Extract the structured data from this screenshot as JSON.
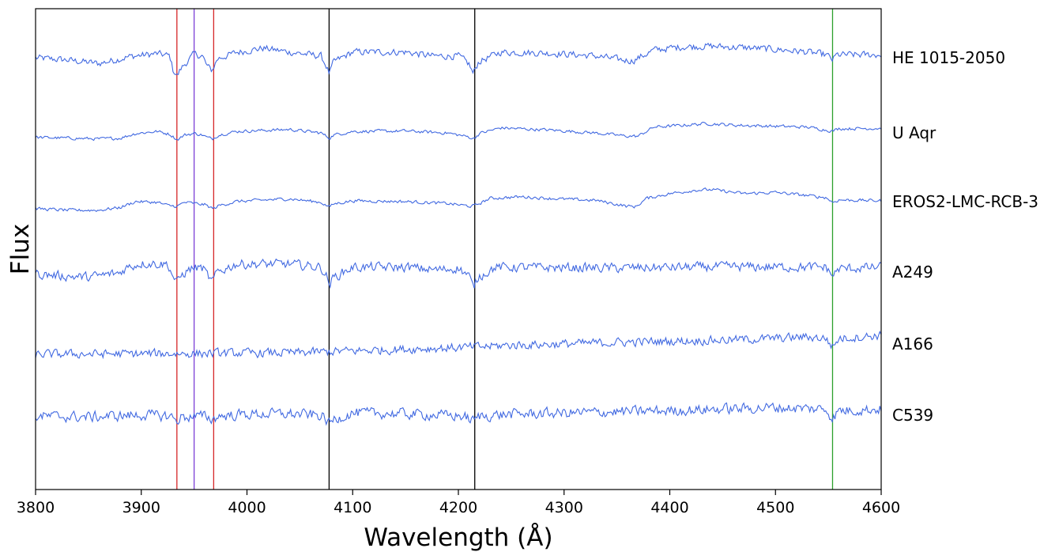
{
  "chart_data": {
    "type": "line",
    "title": "",
    "xlabel": "Wavelength (Å)",
    "ylabel": "Flux",
    "xlim": [
      3800,
      4600
    ],
    "xticks": [
      3800,
      3900,
      4000,
      4100,
      4200,
      4300,
      4400,
      4500,
      4600
    ],
    "yticks": [],
    "grid": false,
    "line_color": "#4169e1",
    "reference_lines": [
      {
        "x": 3933.7,
        "color": "#d62728"
      },
      {
        "x": 3950.0,
        "color": "#7b3fd6"
      },
      {
        "x": 3968.5,
        "color": "#d62728"
      },
      {
        "x": 4077.7,
        "color": "#000000"
      },
      {
        "x": 4215.5,
        "color": "#000000"
      },
      {
        "x": 4554.0,
        "color": "#2ca02c"
      }
    ],
    "series": [
      {
        "name": "HE 1015-2050",
        "noise": 0.55,
        "pts": [
          [
            3800,
            50
          ],
          [
            3830,
            45
          ],
          [
            3860,
            36
          ],
          [
            3890,
            54
          ],
          [
            3915,
            61
          ],
          [
            3927,
            55
          ],
          [
            3930,
            20
          ],
          [
            3934,
            5
          ],
          [
            3938,
            25
          ],
          [
            3950,
            60
          ],
          [
            3958,
            55
          ],
          [
            3962,
            30
          ],
          [
            3967,
            18
          ],
          [
            3972,
            48
          ],
          [
            3990,
            64
          ],
          [
            4015,
            75
          ],
          [
            4040,
            65
          ],
          [
            4070,
            55
          ],
          [
            4075,
            30
          ],
          [
            4078,
            10
          ],
          [
            4082,
            40
          ],
          [
            4100,
            65
          ],
          [
            4150,
            65
          ],
          [
            4175,
            55
          ],
          [
            4200,
            55
          ],
          [
            4210,
            35
          ],
          [
            4214,
            10
          ],
          [
            4219,
            40
          ],
          [
            4240,
            65
          ],
          [
            4290,
            62
          ],
          [
            4330,
            55
          ],
          [
            4355,
            45
          ],
          [
            4365,
            43
          ],
          [
            4385,
            70
          ],
          [
            4410,
            78
          ],
          [
            4435,
            80
          ],
          [
            4455,
            78
          ],
          [
            4480,
            75
          ],
          [
            4510,
            70
          ],
          [
            4530,
            65
          ],
          [
            4548,
            58
          ],
          [
            4554,
            45
          ],
          [
            4558,
            58
          ],
          [
            4600,
            58
          ]
        ]
      },
      {
        "name": "U Aqr",
        "noise": 0.25,
        "pts": [
          [
            3800,
            32
          ],
          [
            3860,
            28
          ],
          [
            3880,
            30
          ],
          [
            3895,
            42
          ],
          [
            3915,
            47
          ],
          [
            3927,
            40
          ],
          [
            3934,
            26
          ],
          [
            3941,
            38
          ],
          [
            3950,
            42
          ],
          [
            3958,
            38
          ],
          [
            3962,
            32
          ],
          [
            3967,
            28
          ],
          [
            3973,
            38
          ],
          [
            3990,
            47
          ],
          [
            4040,
            52
          ],
          [
            4070,
            43
          ],
          [
            4075,
            35
          ],
          [
            4078,
            30
          ],
          [
            4082,
            38
          ],
          [
            4100,
            47
          ],
          [
            4150,
            48
          ],
          [
            4190,
            43
          ],
          [
            4210,
            33
          ],
          [
            4214,
            28
          ],
          [
            4220,
            42
          ],
          [
            4240,
            56
          ],
          [
            4290,
            50
          ],
          [
            4330,
            43
          ],
          [
            4360,
            35
          ],
          [
            4370,
            35
          ],
          [
            4385,
            58
          ],
          [
            4410,
            62
          ],
          [
            4435,
            67
          ],
          [
            4460,
            63
          ],
          [
            4500,
            60
          ],
          [
            4530,
            58
          ],
          [
            4554,
            48
          ],
          [
            4560,
            54
          ],
          [
            4600,
            55
          ]
        ]
      },
      {
        "name": "EROS2-LMC-RCB-3",
        "noise": 0.25,
        "pts": [
          [
            3800,
            22
          ],
          [
            3830,
            18
          ],
          [
            3860,
            18
          ],
          [
            3880,
            25
          ],
          [
            3895,
            40
          ],
          [
            3915,
            38
          ],
          [
            3925,
            30
          ],
          [
            3934,
            28
          ],
          [
            3941,
            38
          ],
          [
            3960,
            32
          ],
          [
            3968,
            22
          ],
          [
            3974,
            30
          ],
          [
            3990,
            40
          ],
          [
            4040,
            47
          ],
          [
            4070,
            38
          ],
          [
            4078,
            26
          ],
          [
            4082,
            34
          ],
          [
            4100,
            42
          ],
          [
            4150,
            40
          ],
          [
            4190,
            35
          ],
          [
            4212,
            28
          ],
          [
            4216,
            30
          ],
          [
            4230,
            48
          ],
          [
            4260,
            52
          ],
          [
            4300,
            46
          ],
          [
            4330,
            43
          ],
          [
            4360,
            28
          ],
          [
            4368,
            27
          ],
          [
            4378,
            48
          ],
          [
            4400,
            60
          ],
          [
            4425,
            69
          ],
          [
            4440,
            70
          ],
          [
            4470,
            60
          ],
          [
            4500,
            63
          ],
          [
            4520,
            58
          ],
          [
            4548,
            50
          ],
          [
            4554,
            38
          ],
          [
            4560,
            44
          ],
          [
            4600,
            42
          ]
        ]
      },
      {
        "name": "A249",
        "noise": 0.75,
        "pts": [
          [
            3800,
            45
          ],
          [
            3825,
            40
          ],
          [
            3850,
            37
          ],
          [
            3880,
            48
          ],
          [
            3885,
            60
          ],
          [
            3900,
            72
          ],
          [
            3925,
            70
          ],
          [
            3930,
            40
          ],
          [
            3934,
            22
          ],
          [
            3938,
            42
          ],
          [
            3948,
            60
          ],
          [
            3958,
            60
          ],
          [
            3962,
            44
          ],
          [
            3967,
            24
          ],
          [
            3972,
            50
          ],
          [
            3990,
            70
          ],
          [
            4040,
            70
          ],
          [
            4070,
            62
          ],
          [
            4075,
            40
          ],
          [
            4078,
            18
          ],
          [
            4082,
            36
          ],
          [
            4100,
            62
          ],
          [
            4150,
            62
          ],
          [
            4180,
            55
          ],
          [
            4200,
            60
          ],
          [
            4210,
            40
          ],
          [
            4214,
            10
          ],
          [
            4219,
            38
          ],
          [
            4235,
            62
          ],
          [
            4350,
            60
          ],
          [
            4450,
            63
          ],
          [
            4548,
            62
          ],
          [
            4554,
            40
          ],
          [
            4560,
            58
          ],
          [
            4600,
            62
          ]
        ]
      },
      {
        "name": "A166",
        "noise": 0.7,
        "pts": [
          [
            3800,
            20
          ],
          [
            3950,
            22
          ],
          [
            4050,
            24
          ],
          [
            4150,
            33
          ],
          [
            4214,
            38
          ],
          [
            4250,
            43
          ],
          [
            4300,
            46
          ],
          [
            4350,
            50
          ],
          [
            4400,
            53
          ],
          [
            4450,
            56
          ],
          [
            4500,
            60
          ],
          [
            4530,
            64
          ],
          [
            4548,
            60
          ],
          [
            4554,
            38
          ],
          [
            4560,
            60
          ],
          [
            4600,
            68
          ]
        ]
      },
      {
        "name": "C539",
        "noise": 0.85,
        "pts": [
          [
            3800,
            52
          ],
          [
            3850,
            50
          ],
          [
            3900,
            55
          ],
          [
            3928,
            52
          ],
          [
            3933,
            40
          ],
          [
            3938,
            50
          ],
          [
            3962,
            52
          ],
          [
            3967,
            42
          ],
          [
            3972,
            52
          ],
          [
            4000,
            57
          ],
          [
            4040,
            58
          ],
          [
            4070,
            54
          ],
          [
            4075,
            42
          ],
          [
            4078,
            32
          ],
          [
            4082,
            44
          ],
          [
            4100,
            60
          ],
          [
            4150,
            58
          ],
          [
            4205,
            52
          ],
          [
            4214,
            40
          ],
          [
            4220,
            52
          ],
          [
            4250,
            57
          ],
          [
            4300,
            60
          ],
          [
            4350,
            63
          ],
          [
            4400,
            66
          ],
          [
            4450,
            70
          ],
          [
            4500,
            74
          ],
          [
            4548,
            70
          ],
          [
            4554,
            46
          ],
          [
            4560,
            66
          ],
          [
            4600,
            70
          ]
        ]
      }
    ]
  }
}
